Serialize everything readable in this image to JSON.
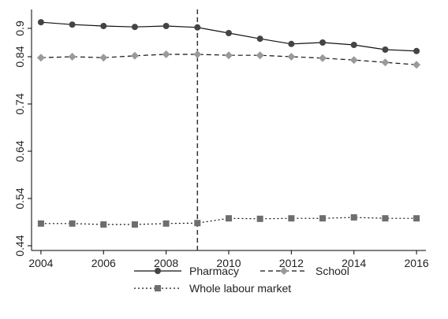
{
  "chart_data": {
    "type": "line",
    "x": [
      2004,
      2005,
      2006,
      2007,
      2008,
      2009,
      2010,
      2011,
      2012,
      2013,
      2014,
      2015,
      2016
    ],
    "series": [
      {
        "name": "Pharmacy",
        "color": "#444444",
        "marker": "circle",
        "dash": "solid",
        "values": [
          0.913,
          0.908,
          0.905,
          0.903,
          0.905,
          0.902,
          0.89,
          0.878,
          0.867,
          0.87,
          0.865,
          0.855,
          0.852
        ]
      },
      {
        "name": "School",
        "color": "#9a9a9a",
        "marker": "diamond",
        "dash": "dashed",
        "values": [
          0.838,
          0.84,
          0.838,
          0.842,
          0.845,
          0.845,
          0.843,
          0.843,
          0.84,
          0.837,
          0.833,
          0.828,
          0.823
        ]
      },
      {
        "name": "Whole labour market",
        "color": "#6e6e6e",
        "marker": "square",
        "dash": "dotted",
        "values": [
          0.487,
          0.487,
          0.485,
          0.485,
          0.487,
          0.488,
          0.498,
          0.497,
          0.498,
          0.498,
          0.5,
          0.498,
          0.498
        ]
      }
    ],
    "xlim": [
      2003.7,
      2016.3
    ],
    "xticks": [
      2004,
      2006,
      2008,
      2010,
      2012,
      2014,
      2016
    ],
    "ylim": [
      0.43,
      0.94
    ],
    "yticks": [
      0.44,
      0.54,
      0.64,
      0.74,
      0.84,
      0.9
    ],
    "vline": 2009,
    "grid": false,
    "legend": "bottom"
  }
}
